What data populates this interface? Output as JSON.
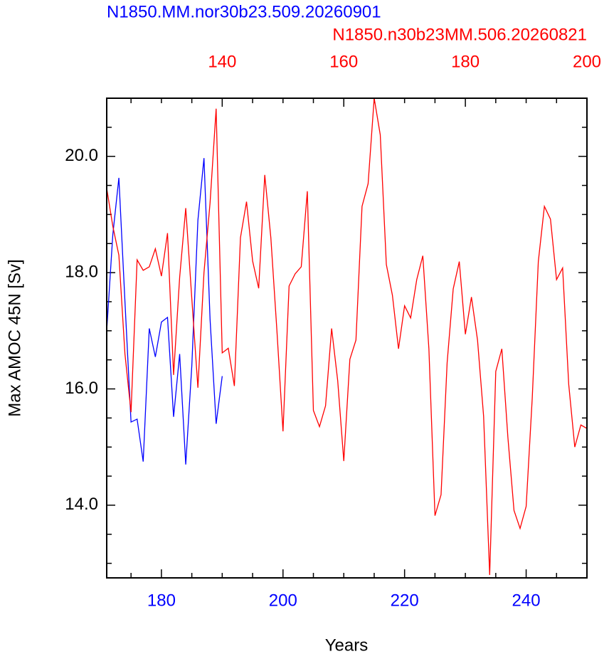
{
  "chart_data": {
    "type": "line",
    "xlabel": "Years",
    "ylabel": "Max AMOC 45N [Sv]",
    "xlim": [
      171,
      250
    ],
    "xticks": [
      180,
      200,
      220,
      240
    ],
    "xminorticks": [
      175,
      185,
      190,
      195,
      205,
      210,
      215,
      225,
      230,
      235,
      245,
      250
    ],
    "x2lim": [
      121,
      200
    ],
    "x2ticks": [
      140,
      160,
      180,
      200
    ],
    "x2minorticks": [
      125,
      130,
      135,
      145,
      150,
      155,
      165,
      170,
      175,
      185,
      190,
      195
    ],
    "ylim": [
      12.75,
      21.0
    ],
    "yticks": [
      {
        "value": 14,
        "label": "14.0"
      },
      {
        "value": 16,
        "label": "16.0"
      },
      {
        "value": 18,
        "label": "18.0"
      },
      {
        "value": 20,
        "label": "20.0"
      }
    ],
    "yminorticks": [
      13,
      13.5,
      14.5,
      15,
      15.5,
      16.5,
      17,
      17.5,
      18.5,
      19,
      19.5,
      20.5,
      21
    ],
    "series": [
      {
        "name": "N1850.MM.nor30b23.509.20260901",
        "color": "#0000ff",
        "axis": "x",
        "x": [
          171,
          172,
          173,
          174,
          175,
          176,
          177,
          178,
          179,
          180,
          181,
          182,
          183,
          184,
          185,
          186,
          187,
          188,
          189,
          190
        ],
        "values": [
          17.0,
          18.65,
          19.63,
          17.5,
          15.43,
          15.48,
          14.75,
          17.04,
          16.55,
          17.15,
          17.23,
          15.52,
          16.6,
          14.7,
          16.4,
          18.9,
          19.97,
          17.2,
          15.4,
          16.22
        ]
      },
      {
        "name": "N1850.n30b23MM.506.20260821",
        "color": "#ff0000",
        "axis": "x2",
        "x": [
          121,
          122,
          123,
          124,
          125,
          126,
          127,
          128,
          129,
          130,
          131,
          132,
          133,
          134,
          135,
          136,
          137,
          138,
          139,
          140,
          141,
          142,
          143,
          144,
          145,
          146,
          147,
          148,
          149,
          150,
          151,
          152,
          153,
          154,
          155,
          156,
          157,
          158,
          159,
          160,
          161,
          162,
          163,
          164,
          165,
          166,
          167,
          168,
          169,
          170,
          171,
          172,
          173,
          174,
          175,
          176,
          177,
          178,
          179,
          180,
          181,
          182,
          183,
          184,
          185,
          186,
          187,
          188,
          189,
          190,
          191,
          192,
          193,
          194,
          195,
          196,
          197,
          198,
          199,
          200
        ],
        "values": [
          19.45,
          18.8,
          18.3,
          16.6,
          15.6,
          18.22,
          18.04,
          18.1,
          18.41,
          17.94,
          18.68,
          16.24,
          17.92,
          19.11,
          17.55,
          16.02,
          18.0,
          19.2,
          20.82,
          16.62,
          16.7,
          16.05,
          18.6,
          19.22,
          18.2,
          17.73,
          19.68,
          18.6,
          17.0,
          15.27,
          17.77,
          17.98,
          18.1,
          19.4,
          15.63,
          15.35,
          15.71,
          17.04,
          16.14,
          14.76,
          16.51,
          16.84,
          19.14,
          19.53,
          21.0,
          20.37,
          18.14,
          17.61,
          16.69,
          17.43,
          17.22,
          17.88,
          18.29,
          16.69,
          13.82,
          14.18,
          16.45,
          17.72,
          18.19,
          16.94,
          17.58,
          16.84,
          15.53,
          12.8,
          16.3,
          16.69,
          15.16,
          13.91,
          13.6,
          13.98,
          15.84,
          18.19,
          19.14,
          18.92,
          17.88,
          18.08,
          16.08,
          15.0,
          15.38,
          15.32
        ]
      }
    ]
  }
}
